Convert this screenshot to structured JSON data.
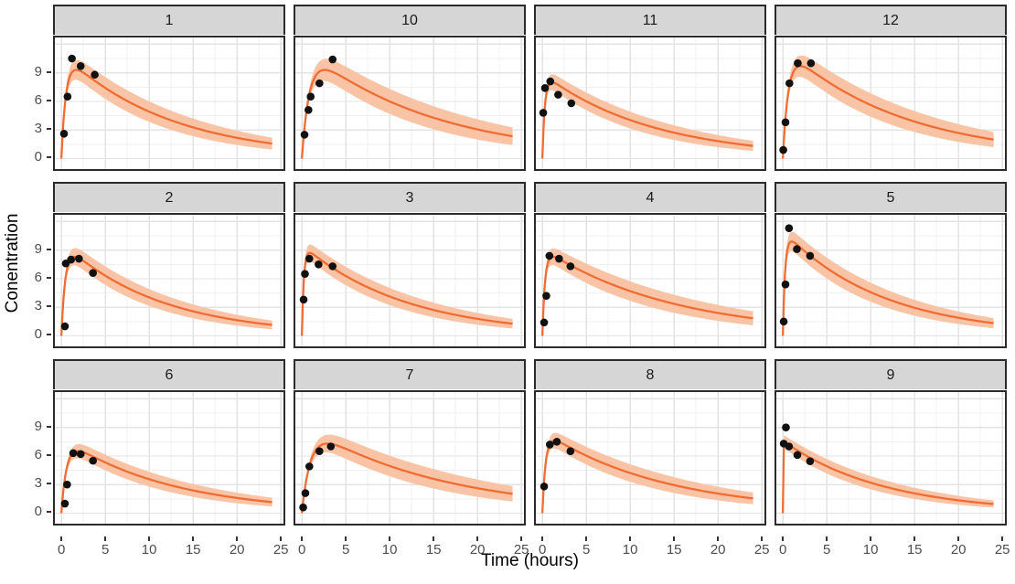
{
  "figure": {
    "x_title": "Time (hours)",
    "y_title": "Conentration"
  },
  "chart_data": {
    "type": "line",
    "description": "Faceted concentration-time profiles: fitted curve with confidence ribbon and observed points, one panel per subject",
    "xlabel": "Time (hours)",
    "ylabel": "Conentration",
    "x_ticks": [
      0,
      5,
      10,
      15,
      20,
      25
    ],
    "y_ticks": [
      0,
      3,
      6,
      9
    ],
    "x_minor_ticks": [
      2.5,
      7.5,
      12.5,
      17.5,
      22.5
    ],
    "y_minor_ticks": [
      1.5,
      4.5,
      7.5,
      10.5
    ],
    "y_major_grid": [
      0,
      3,
      6,
      9,
      12
    ],
    "x_range": [
      -0.95,
      25.5
    ],
    "y_range": [
      -1.3,
      12.9
    ],
    "grid": true,
    "legend": "none",
    "colors": {
      "line": "#ef6c33",
      "ribbon": "#f9c4a6",
      "points": "#111111",
      "strip_bg": "#d6d6d6",
      "panel_border": "#2b2b2b",
      "grid_major": "#e3e3e3",
      "grid_minor": "#f0f0f0",
      "tick_text": "#4d4d4d"
    },
    "ribbon": {
      "rel_width_at_peak": 0.09,
      "rel_width_at_24h": 0.4
    },
    "facets": [
      {
        "label": "1",
        "points": [
          [
            0.3,
            2.6
          ],
          [
            0.7,
            6.5
          ],
          [
            1.2,
            10.5
          ],
          [
            2.2,
            9.7
          ],
          [
            3.8,
            8.8
          ]
        ],
        "curve": {
          "cmax": 9.3,
          "tmax": 1.7,
          "c24": 1.5
        }
      },
      {
        "label": "10",
        "points": [
          [
            0.3,
            2.5
          ],
          [
            0.75,
            5.1
          ],
          [
            1.0,
            6.5
          ],
          [
            2.0,
            7.9
          ],
          [
            3.5,
            10.4
          ]
        ],
        "curve": {
          "cmax": 9.3,
          "tmax": 2.6,
          "c24": 2.2
        }
      },
      {
        "label": "11",
        "points": [
          [
            0.1,
            4.8
          ],
          [
            0.3,
            7.4
          ],
          [
            0.9,
            8.1
          ],
          [
            1.8,
            6.7
          ],
          [
            3.3,
            5.8
          ]
        ],
        "curve": {
          "cmax": 8.0,
          "tmax": 1.1,
          "c24": 1.3
        }
      },
      {
        "label": "12",
        "points": [
          [
            0.05,
            0.9
          ],
          [
            0.3,
            3.8
          ],
          [
            0.75,
            7.9
          ],
          [
            1.7,
            10.0
          ],
          [
            3.2,
            10.0
          ]
        ],
        "curve": {
          "cmax": 9.7,
          "tmax": 2.0,
          "c24": 1.9
        }
      },
      {
        "label": "2",
        "points": [
          [
            0.4,
            1.0
          ],
          [
            0.5,
            7.6
          ],
          [
            1.1,
            8.0
          ],
          [
            2.0,
            8.1
          ],
          [
            3.6,
            6.6
          ]
        ],
        "curve": {
          "cmax": 8.3,
          "tmax": 1.5,
          "c24": 1.1
        }
      },
      {
        "label": "3",
        "points": [
          [
            0.2,
            3.8
          ],
          [
            0.35,
            6.5
          ],
          [
            0.85,
            8.1
          ],
          [
            1.9,
            7.5
          ],
          [
            3.5,
            7.3
          ]
        ],
        "curve": {
          "cmax": 8.7,
          "tmax": 0.9,
          "c24": 1.25
        }
      },
      {
        "label": "4",
        "points": [
          [
            0.2,
            1.4
          ],
          [
            0.45,
            4.2
          ],
          [
            0.8,
            8.4
          ],
          [
            1.9,
            8.1
          ],
          [
            3.2,
            7.3
          ]
        ],
        "curve": {
          "cmax": 8.3,
          "tmax": 1.2,
          "c24": 1.8
        }
      },
      {
        "label": "5",
        "points": [
          [
            0.1,
            1.5
          ],
          [
            0.3,
            5.4
          ],
          [
            0.7,
            11.3
          ],
          [
            1.6,
            9.1
          ],
          [
            3.1,
            8.4
          ]
        ],
        "curve": {
          "cmax": 9.9,
          "tmax": 1.0,
          "c24": 1.3
        }
      },
      {
        "label": "6",
        "points": [
          [
            0.4,
            1.0
          ],
          [
            0.65,
            3.0
          ],
          [
            1.35,
            6.3
          ],
          [
            2.2,
            6.2
          ],
          [
            3.6,
            5.5
          ]
        ],
        "curve": {
          "cmax": 6.5,
          "tmax": 1.9,
          "c24": 1.1
        }
      },
      {
        "label": "7",
        "points": [
          [
            0.15,
            0.6
          ],
          [
            0.4,
            2.1
          ],
          [
            0.85,
            4.9
          ],
          [
            2.0,
            6.5
          ],
          [
            3.3,
            7.0
          ]
        ],
        "curve": {
          "cmax": 7.3,
          "tmax": 2.9,
          "c24": 1.9
        }
      },
      {
        "label": "8",
        "points": [
          [
            0.2,
            2.8
          ],
          [
            0.85,
            7.2
          ],
          [
            1.65,
            7.5
          ],
          [
            3.2,
            6.5
          ]
        ],
        "curve": {
          "cmax": 7.6,
          "tmax": 1.4,
          "c24": 1.5
        }
      },
      {
        "label": "9",
        "points": [
          [
            0.1,
            7.3
          ],
          [
            0.35,
            9.0
          ],
          [
            0.7,
            7.0
          ],
          [
            1.65,
            6.1
          ],
          [
            3.1,
            5.45
          ]
        ],
        "curve": {
          "cmax": 7.5,
          "tmax": 0.12,
          "c24": 0.95
        }
      }
    ]
  }
}
